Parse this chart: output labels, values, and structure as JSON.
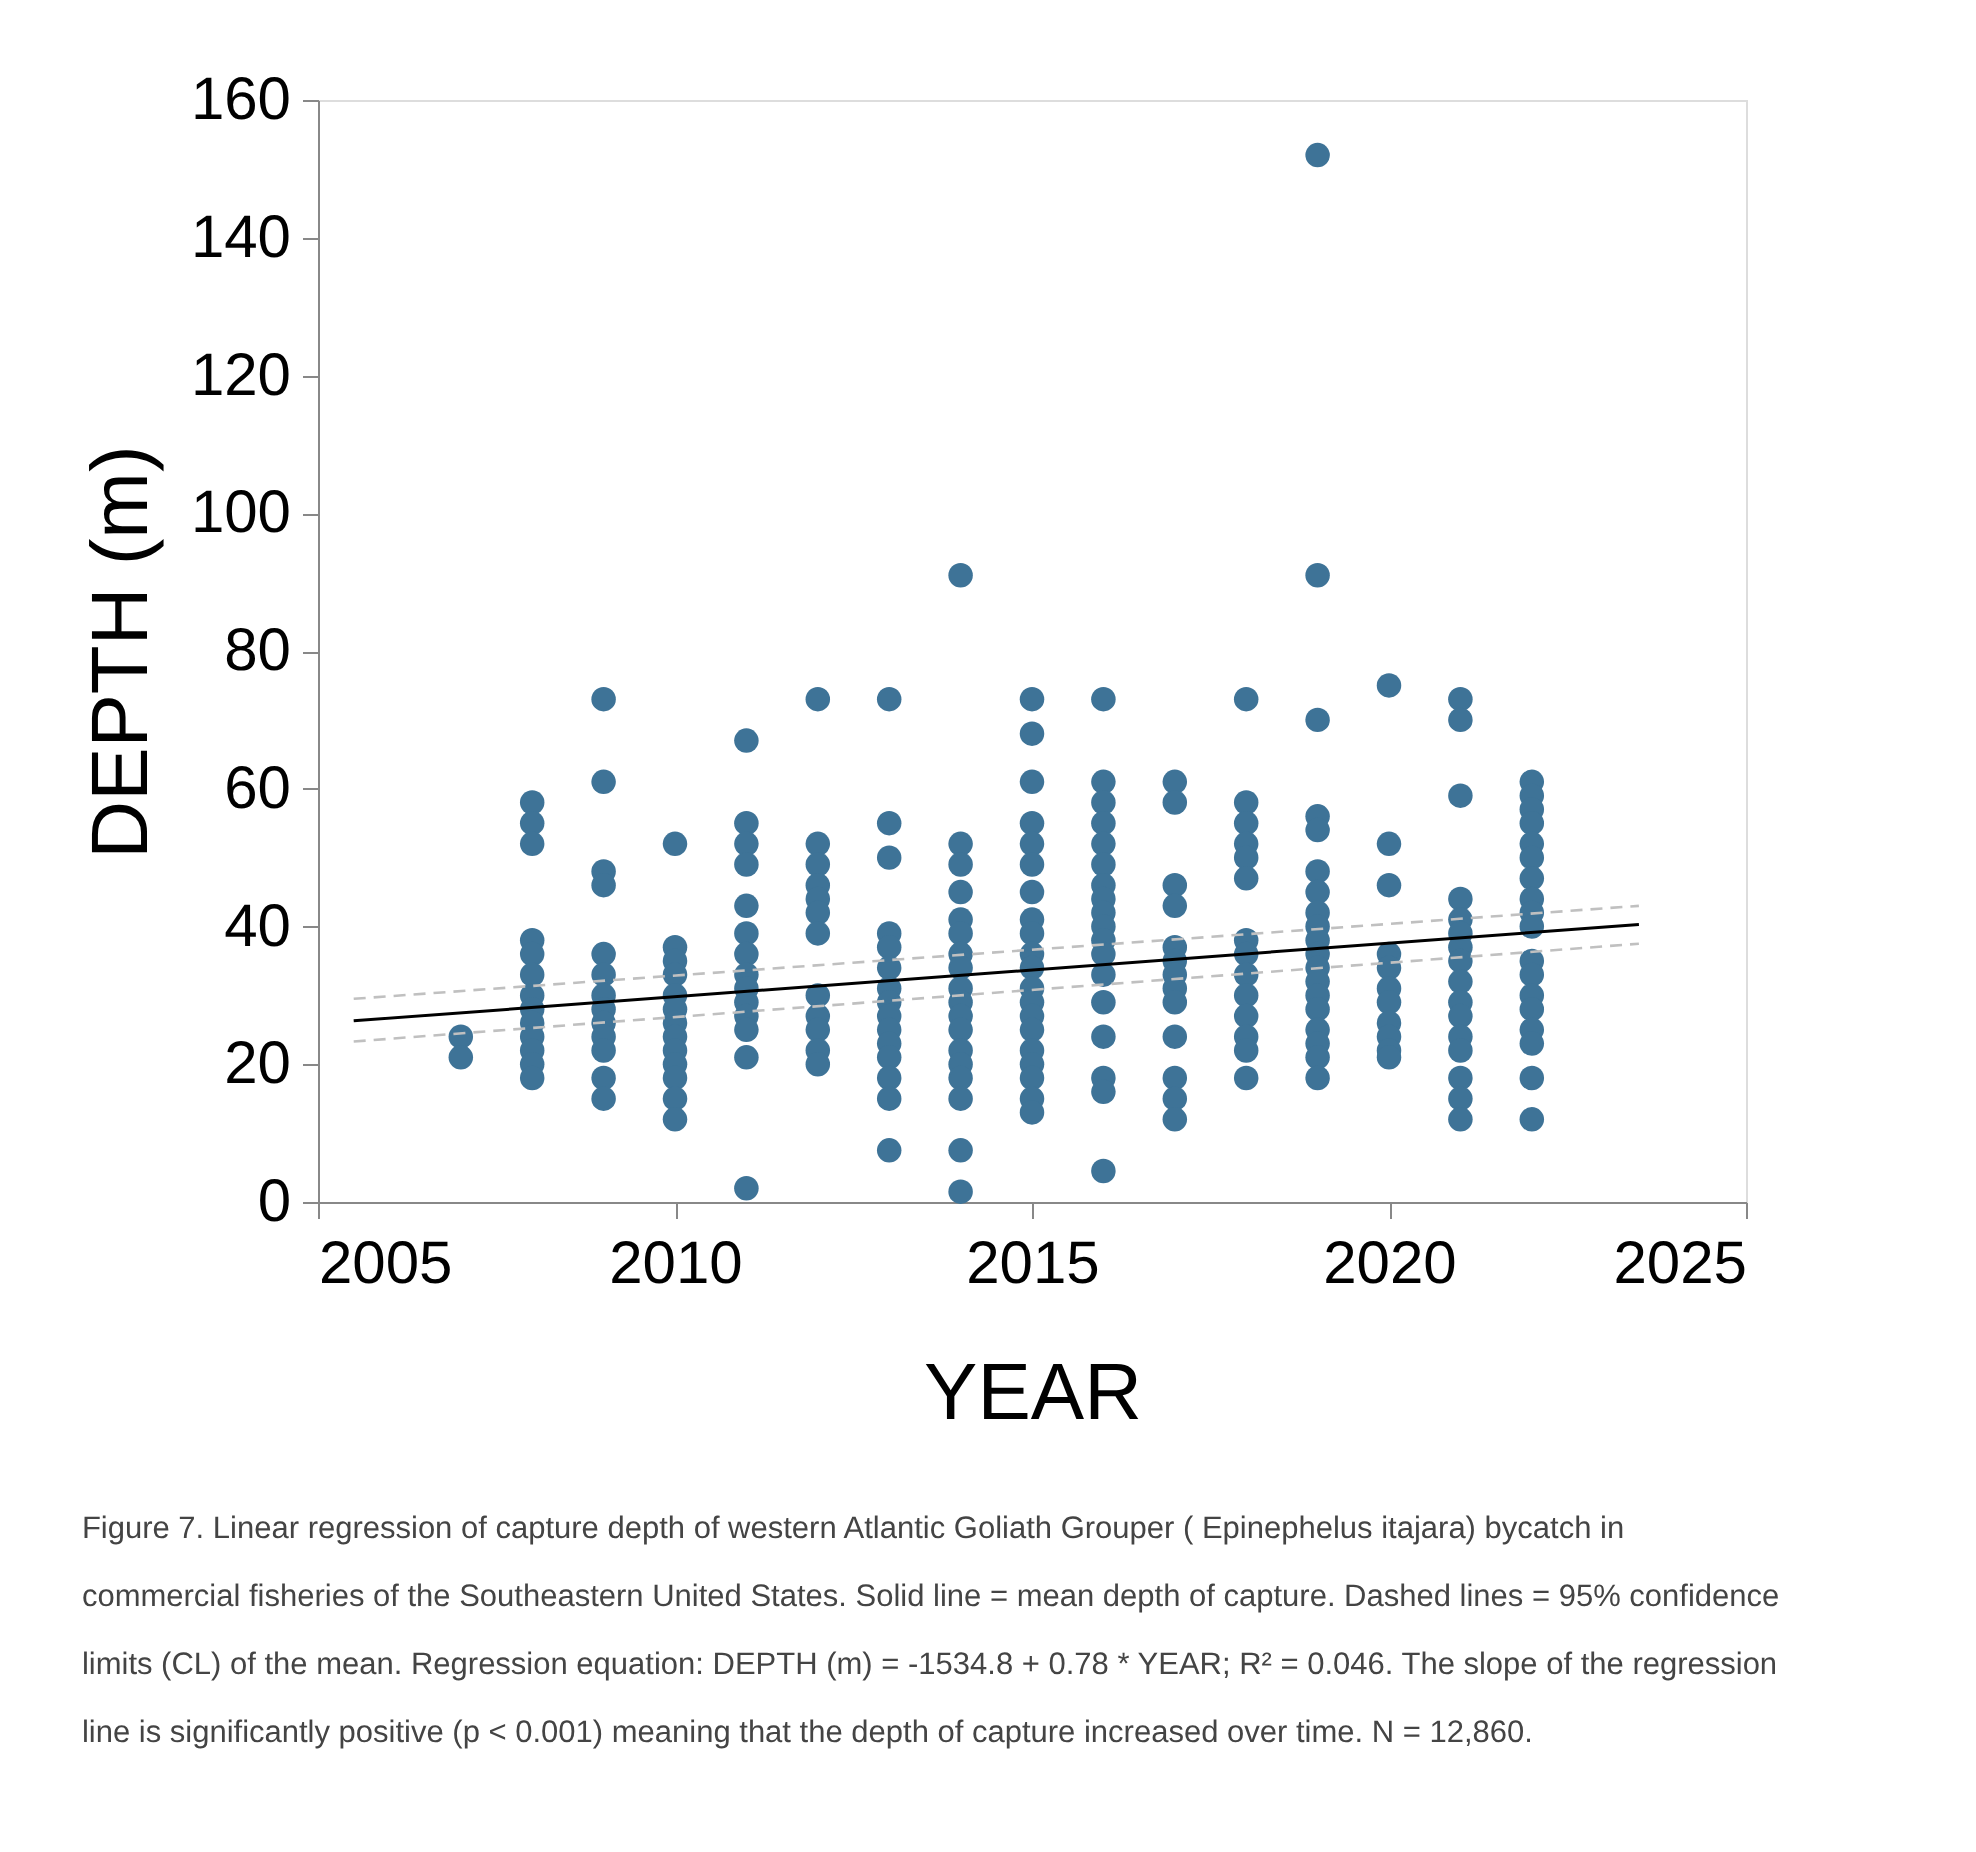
{
  "chart_data": {
    "type": "scatter",
    "xlabel": "YEAR",
    "ylabel": "DEPTH (m)",
    "xlim": [
      2005,
      2025
    ],
    "xticks": [
      2005,
      2010,
      2015,
      2020,
      2025
    ],
    "ylim": [
      0,
      160
    ],
    "yticks": [
      0,
      20,
      40,
      60,
      80,
      100,
      120,
      140,
      160
    ],
    "grid": false,
    "legend": false,
    "marker": "circle",
    "series": [
      {
        "color": "#3e7397",
        "x": [
          2007,
          2007,
          2008,
          2008,
          2008,
          2008,
          2008,
          2008,
          2008,
          2008,
          2008,
          2008,
          2008,
          2008,
          2008,
          2009,
          2009,
          2009,
          2009,
          2009,
          2009,
          2009,
          2009,
          2009,
          2009,
          2009,
          2009,
          2009,
          2010,
          2010,
          2010,
          2010,
          2010,
          2010,
          2010,
          2010,
          2010,
          2010,
          2010,
          2010,
          2010,
          2011,
          2011,
          2011,
          2011,
          2011,
          2011,
          2011,
          2011,
          2011,
          2011,
          2011,
          2011,
          2011,
          2011,
          2012,
          2012,
          2012,
          2012,
          2012,
          2012,
          2012,
          2012,
          2012,
          2012,
          2012,
          2012,
          2013,
          2013,
          2013,
          2013,
          2013,
          2013,
          2013,
          2013,
          2013,
          2013,
          2013,
          2013,
          2013,
          2013,
          2013,
          2014,
          2014,
          2014,
          2014,
          2014,
          2014,
          2014,
          2014,
          2014,
          2014,
          2014,
          2014,
          2014,
          2014,
          2014,
          2014,
          2014,
          2014,
          2015,
          2015,
          2015,
          2015,
          2015,
          2015,
          2015,
          2015,
          2015,
          2015,
          2015,
          2015,
          2015,
          2015,
          2015,
          2015,
          2015,
          2015,
          2015,
          2015,
          2016,
          2016,
          2016,
          2016,
          2016,
          2016,
          2016,
          2016,
          2016,
          2016,
          2016,
          2016,
          2016,
          2016,
          2016,
          2016,
          2016,
          2016,
          2017,
          2017,
          2017,
          2017,
          2017,
          2017,
          2017,
          2017,
          2017,
          2017,
          2017,
          2017,
          2017,
          2018,
          2018,
          2018,
          2018,
          2018,
          2018,
          2018,
          2018,
          2018,
          2018,
          2018,
          2018,
          2018,
          2018,
          2019,
          2019,
          2019,
          2019,
          2019,
          2019,
          2019,
          2019,
          2019,
          2019,
          2019,
          2019,
          2019,
          2019,
          2019,
          2019,
          2019,
          2019,
          2019,
          2020,
          2020,
          2020,
          2020,
          2020,
          2020,
          2020,
          2020,
          2020,
          2020,
          2020,
          2021,
          2021,
          2021,
          2021,
          2021,
          2021,
          2021,
          2021,
          2021,
          2021,
          2021,
          2021,
          2021,
          2021,
          2021,
          2021,
          2022,
          2022,
          2022,
          2022,
          2022,
          2022,
          2022,
          2022,
          2022,
          2022,
          2022,
          2022,
          2022,
          2022,
          2022,
          2022,
          2022,
          2022
        ],
        "values": [
          24,
          21,
          58,
          55,
          52,
          38,
          36,
          33,
          30,
          28,
          26,
          24,
          22,
          20,
          18,
          73,
          61,
          48,
          46,
          36,
          33,
          30,
          28,
          26,
          24,
          22,
          18,
          15,
          52,
          37,
          35,
          33,
          30,
          28,
          26,
          24,
          22,
          20,
          18,
          15,
          12,
          67,
          55,
          52,
          49,
          43,
          39,
          36,
          33,
          31,
          29,
          27,
          25,
          21,
          2,
          73,
          52,
          49,
          46,
          44,
          42,
          39,
          30,
          27,
          25,
          22,
          20,
          73,
          55,
          50,
          39,
          37,
          34,
          31,
          29,
          27,
          25,
          23,
          21,
          18,
          15,
          7.5,
          91,
          52,
          49,
          45,
          41,
          39,
          36,
          34,
          31,
          29,
          27,
          25,
          22,
          20,
          18,
          15,
          7.5,
          1.5,
          73,
          68,
          61,
          55,
          52,
          49,
          45,
          41,
          39,
          36,
          34,
          31,
          29,
          27,
          25,
          22,
          20,
          18,
          15,
          13,
          73,
          61,
          58,
          55,
          52,
          49,
          46,
          44,
          42,
          40,
          38,
          36,
          33,
          29,
          24,
          18,
          16,
          4.5,
          61,
          58,
          46,
          43,
          37,
          35,
          33,
          31,
          29,
          24,
          18,
          15,
          12,
          73,
          58,
          55,
          52,
          50,
          47,
          38,
          36,
          33,
          30,
          27,
          24,
          22,
          18,
          152,
          91,
          70,
          56,
          54,
          48,
          45,
          42,
          40,
          38,
          36,
          34,
          32,
          30,
          28,
          25,
          23,
          21,
          18,
          75,
          52,
          46,
          36,
          34,
          31,
          29,
          26,
          24,
          22,
          21,
          73,
          70,
          59,
          44,
          41,
          39,
          37,
          35,
          32,
          29,
          27,
          24,
          22,
          18,
          15,
          12,
          61,
          59,
          57,
          55,
          52,
          50,
          47,
          44,
          42,
          40,
          35,
          33,
          30,
          28,
          25,
          23,
          18,
          12
        ]
      },
      {
        "type": "line",
        "color": "#000000",
        "line_style": "solid",
        "marker": "none",
        "x": [
          2005.5,
          2023.5
        ],
        "values": [
          26.3,
          40.3
        ]
      },
      {
        "type": "line",
        "color": "#c0c0c0",
        "line_style": "dashed",
        "marker": "none",
        "x": [
          2005.5,
          2023.5
        ],
        "values": [
          29.5,
          43
        ]
      },
      {
        "type": "line",
        "color": "#c0c0c0",
        "line_style": "dashed",
        "marker": "none",
        "x": [
          2005.5,
          2023.5
        ],
        "values": [
          23.3,
          37.5
        ]
      }
    ],
    "annotations": [
      "Figure 7. Linear regression of capture depth of western Atlantic Goliath Grouper ( Epinephelus itajara) bycatch in commercial fisheries of the Southeastern United States. Solid line = mean depth of capture. Dashed lines = 95% confidence limits (CL) of the mean. Regression equation: DEPTH (m) = -1534.8 + 0.78 * YEAR; R² = 0.046. The slope of the regression line is significantly positive (p < 0.001) meaning that the depth of capture increased over time. N = 12,860."
    ]
  }
}
